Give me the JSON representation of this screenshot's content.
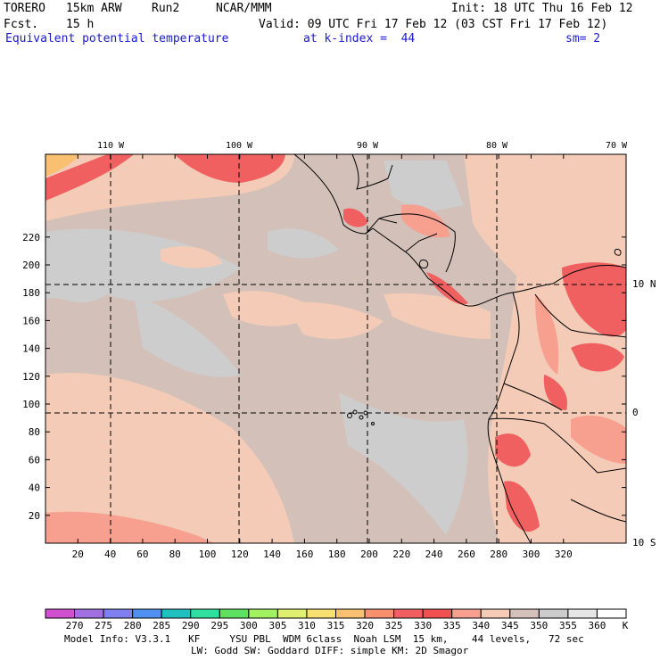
{
  "header": {
    "model": "TORERO",
    "resolution": "15km ARW",
    "run": "Run2",
    "org": "NCAR/MMM",
    "init": "Init: 18 UTC Thu 16 Feb 12",
    "fcst_label": "Fcst.",
    "fcst_value": "15 h",
    "valid": "Valid: 09 UTC Fri 17 Feb 12 (03 CST Fri 17 Feb 12)",
    "field": "Equivalent potential temperature",
    "kindex": "at k-index =  44",
    "sm": "sm= 2"
  },
  "map": {
    "lon_labels": [
      "110 W",
      "100 W",
      "90 W",
      "80 W",
      "70 W"
    ],
    "lat_labels": [
      "10 N",
      "0",
      "10 S"
    ],
    "x_ticks": [
      "20",
      "40",
      "60",
      "80",
      "100",
      "120",
      "140",
      "160",
      "180",
      "200",
      "220",
      "240",
      "260",
      "280",
      "300",
      "320"
    ],
    "y_ticks": [
      "220",
      "200",
      "180",
      "160",
      "140",
      "120",
      "100",
      "80",
      "60",
      "40",
      "20"
    ]
  },
  "colorbar": {
    "labels": [
      "270",
      "275",
      "280",
      "285",
      "290",
      "295",
      "300",
      "305",
      "310",
      "315",
      "320",
      "325",
      "330",
      "335",
      "340",
      "345",
      "350",
      "355",
      "360"
    ],
    "unit": "K",
    "colors": [
      "#d050d0",
      "#a070e0",
      "#8080f0",
      "#5090f0",
      "#20c0c0",
      "#30e0a0",
      "#60e060",
      "#a0f060",
      "#e0f070",
      "#f8e070",
      "#f8c070",
      "#f89070",
      "#f06060",
      "#f05050",
      "#f8a090",
      "#f3cbb6",
      "#d3c1b9",
      "#cccccc",
      "#e6e6e6",
      "#ffffff"
    ]
  },
  "footer": {
    "line1": "Model Info: V3.3.1   KF     YSU PBL  WDM 6class  Noah LSM  15 km,    44 levels,   72 sec",
    "line2": "LW: Godd SW: Goddard DIFF: simple KM: 2D Smagor"
  }
}
